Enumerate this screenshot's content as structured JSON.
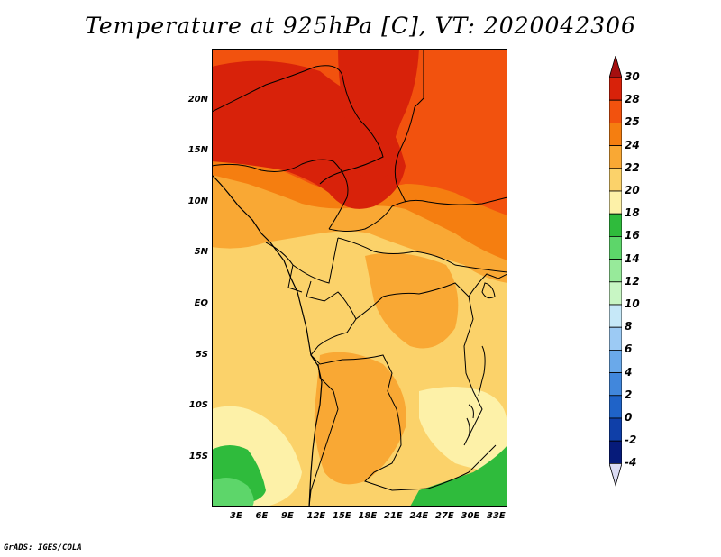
{
  "title": "Temperature at 925hPa [C], VT: 2020042306",
  "credit": "GrADS: IGES/COLA",
  "lat_ticks": [
    "20N",
    "15N",
    "10N",
    "5N",
    "EQ",
    "5S",
    "10S",
    "15S"
  ],
  "lon_ticks": [
    "3E",
    "6E",
    "9E",
    "12E",
    "15E",
    "18E",
    "21E",
    "24E",
    "27E",
    "30E",
    "33E"
  ],
  "colorbar": {
    "labels": [
      "30",
      "28",
      "25",
      "24",
      "22",
      "20",
      "18",
      "16",
      "14",
      "12",
      "10",
      "8",
      "6",
      "4",
      "2",
      "0",
      "-2",
      "-4"
    ],
    "colors": [
      "#a50f0f",
      "#d8220a",
      "#f2520e",
      "#f57e10",
      "#f9a834",
      "#fbd26a",
      "#fdf1a8",
      "#2fbb3c",
      "#5dd66a",
      "#97ea9a",
      "#c8f6c4",
      "#c6e8f8",
      "#9ccaf4",
      "#6aa9ea",
      "#4187dc",
      "#1f63c8",
      "#0f3fa8",
      "#061b7a",
      "#dcdcf4"
    ]
  }
}
